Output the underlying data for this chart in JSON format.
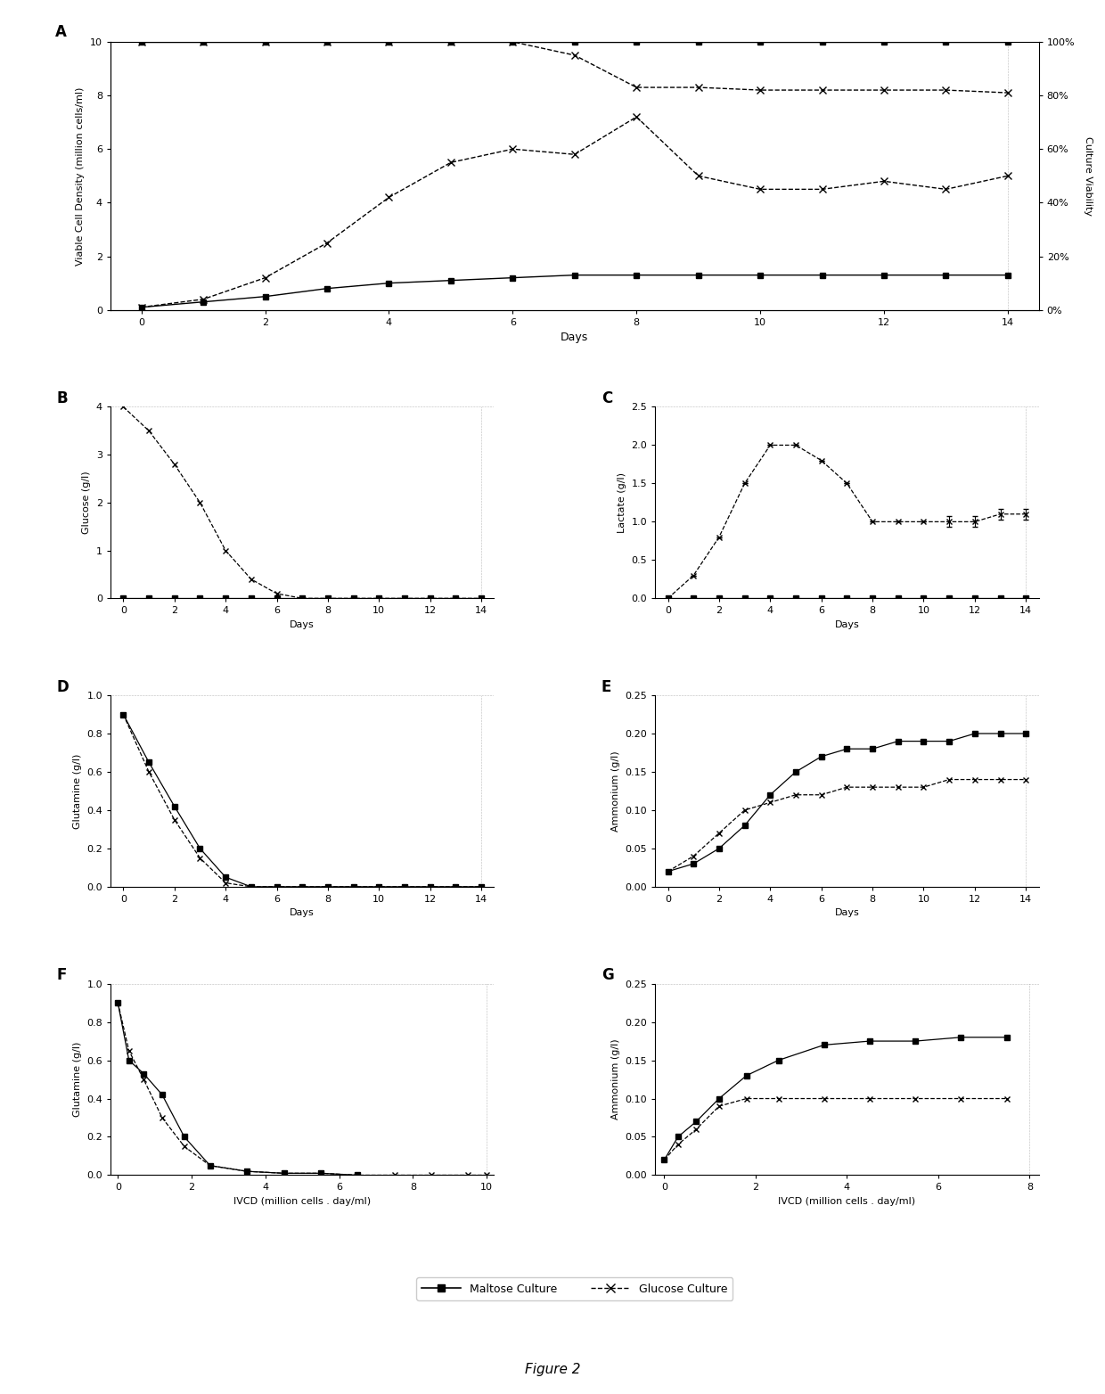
{
  "panel_A": {
    "maltose_vcd": [
      0.1,
      0.3,
      0.5,
      0.8,
      1.0,
      1.1,
      1.2,
      1.3,
      1.3,
      1.3,
      1.3,
      1.3,
      1.3,
      1.3,
      1.3
    ],
    "glucose_vcd": [
      0.1,
      0.4,
      1.2,
      2.5,
      4.2,
      5.5,
      6.0,
      5.8,
      7.2,
      5.0,
      4.5,
      4.5,
      4.8,
      4.5,
      5.0
    ],
    "maltose_viability": [
      10.0,
      10.0,
      10.0,
      10.0,
      10.0,
      10.0,
      10.0,
      10.0,
      10.0,
      10.0,
      10.0,
      10.0,
      10.0,
      10.0,
      10.0
    ],
    "glucose_viability": [
      10.0,
      10.0,
      10.0,
      10.0,
      10.0,
      10.0,
      10.0,
      9.5,
      8.3,
      8.3,
      8.2,
      8.2,
      8.2,
      8.2,
      8.1
    ],
    "days": [
      0,
      1,
      2,
      3,
      4,
      5,
      6,
      7,
      8,
      9,
      10,
      11,
      12,
      13,
      14
    ],
    "ylabel_left": "Viable Cell Density (million cells/ml)",
    "ylabel_right": "Culture Viability",
    "xlabel": "Days",
    "yticks_left": [
      0.0,
      2.0,
      4.0,
      6.0,
      8.0,
      10.0
    ],
    "yticks_right_labels": [
      "0%",
      "20%",
      "40%",
      "60%",
      "80%",
      "100%"
    ],
    "xticks": [
      0,
      2,
      4,
      6,
      8,
      10,
      12,
      14
    ]
  },
  "panel_B": {
    "maltose_x": [
      0,
      1,
      2,
      3,
      4,
      5,
      6,
      7,
      8,
      9,
      10,
      11,
      12,
      13,
      14
    ],
    "maltose_y": [
      0.0,
      0.0,
      0.0,
      0.0,
      0.0,
      0.0,
      0.0,
      0.0,
      0.0,
      0.0,
      0.0,
      0.0,
      0.0,
      0.0,
      0.0
    ],
    "glucose_x": [
      0,
      1,
      2,
      3,
      4,
      5,
      6,
      7,
      8,
      9,
      10,
      11,
      12,
      13,
      14
    ],
    "glucose_y": [
      4.0,
      3.5,
      2.8,
      2.0,
      1.0,
      0.4,
      0.1,
      0.0,
      0.0,
      0.0,
      0.0,
      0.0,
      0.0,
      0.0,
      0.0
    ],
    "ylabel": "Glucose (g/l)",
    "xlabel": "Days",
    "ylim": [
      0.0,
      4.0
    ],
    "yticks": [
      0.0,
      1.0,
      2.0,
      3.0,
      4.0
    ],
    "xticks": [
      0,
      2,
      4,
      6,
      8,
      10,
      12,
      14
    ]
  },
  "panel_C": {
    "maltose_x": [
      0,
      1,
      2,
      3,
      4,
      5,
      6,
      7,
      8,
      9,
      10,
      11,
      12,
      13,
      14
    ],
    "maltose_y": [
      0.0,
      0.0,
      0.0,
      0.0,
      0.0,
      0.0,
      0.0,
      0.0,
      0.0,
      0.0,
      0.0,
      0.0,
      0.0,
      0.0,
      0.0
    ],
    "glucose_x": [
      0,
      1,
      2,
      3,
      4,
      5,
      6,
      7,
      8,
      9,
      10,
      11,
      12,
      13,
      14
    ],
    "glucose_y": [
      0.0,
      0.3,
      0.8,
      1.5,
      2.0,
      2.0,
      1.8,
      1.5,
      1.0,
      1.0,
      1.0,
      1.0,
      1.0,
      1.1,
      1.1
    ],
    "glucose_yerr": [
      0,
      0,
      0,
      0,
      0,
      0,
      0,
      0,
      0,
      0,
      0,
      0.07,
      0.07,
      0.07,
      0.07
    ],
    "ylabel": "Lactate (g/l)",
    "xlabel": "Days",
    "ylim": [
      0.0,
      2.5
    ],
    "yticks": [
      0.0,
      0.5,
      1.0,
      1.5,
      2.0,
      2.5
    ],
    "xticks": [
      0,
      2,
      4,
      6,
      8,
      10,
      12,
      14
    ]
  },
  "panel_D": {
    "maltose_x": [
      0,
      1,
      2,
      3,
      4,
      5,
      6,
      7,
      8,
      9,
      10,
      11,
      12,
      13,
      14
    ],
    "maltose_y": [
      0.9,
      0.65,
      0.42,
      0.2,
      0.05,
      0.0,
      0.0,
      0.0,
      0.0,
      0.0,
      0.0,
      0.0,
      0.0,
      0.0,
      0.0
    ],
    "glucose_x": [
      0,
      1,
      2,
      3,
      4,
      5,
      6,
      7,
      8,
      9,
      10,
      11,
      12,
      13,
      14
    ],
    "glucose_y": [
      0.9,
      0.6,
      0.35,
      0.15,
      0.02,
      0.0,
      0.0,
      0.0,
      0.0,
      0.0,
      0.0,
      0.0,
      0.0,
      0.0,
      0.0
    ],
    "ylabel": "Glutamine (g/l)",
    "xlabel": "Days",
    "ylim": [
      0.0,
      1.0
    ],
    "yticks": [
      0.0,
      0.2,
      0.4,
      0.6,
      0.8,
      1.0
    ],
    "xticks": [
      0,
      2,
      4,
      6,
      8,
      10,
      12,
      14
    ]
  },
  "panel_E": {
    "maltose_x": [
      0,
      1,
      2,
      3,
      4,
      5,
      6,
      7,
      8,
      9,
      10,
      11,
      12,
      13,
      14
    ],
    "maltose_y": [
      0.02,
      0.03,
      0.05,
      0.08,
      0.12,
      0.15,
      0.17,
      0.18,
      0.18,
      0.19,
      0.19,
      0.19,
      0.2,
      0.2,
      0.2
    ],
    "glucose_x": [
      0,
      1,
      2,
      3,
      4,
      5,
      6,
      7,
      8,
      9,
      10,
      11,
      12,
      13,
      14
    ],
    "glucose_y": [
      0.02,
      0.04,
      0.07,
      0.1,
      0.11,
      0.12,
      0.12,
      0.13,
      0.13,
      0.13,
      0.13,
      0.14,
      0.14,
      0.14,
      0.14
    ],
    "ylabel": "Ammonium (g/l)",
    "xlabel": "Days",
    "ylim": [
      0.0,
      0.25
    ],
    "yticks": [
      0.0,
      0.05,
      0.1,
      0.15,
      0.2,
      0.25
    ],
    "xticks": [
      0,
      2,
      4,
      6,
      8,
      10,
      12,
      14
    ]
  },
  "panel_F": {
    "maltose_x": [
      0.0,
      0.3,
      0.7,
      1.2,
      1.8,
      2.5,
      3.5,
      4.5,
      5.5,
      6.5
    ],
    "maltose_y": [
      0.9,
      0.6,
      0.53,
      0.42,
      0.2,
      0.05,
      0.02,
      0.01,
      0.01,
      0.0
    ],
    "glucose_x": [
      0.0,
      0.3,
      0.7,
      1.2,
      1.8,
      2.5,
      3.5,
      4.5,
      5.5,
      6.5,
      7.5,
      8.5,
      9.5,
      10.0
    ],
    "glucose_y": [
      0.9,
      0.65,
      0.5,
      0.3,
      0.15,
      0.05,
      0.02,
      0.01,
      0.01,
      0.0,
      0.0,
      0.0,
      0.0,
      0.0
    ],
    "ylabel": "Glutamine (g/l)",
    "xlabel": "IVCD (million cells . day/ml)",
    "ylim": [
      0.0,
      1.0
    ],
    "yticks": [
      0.0,
      0.2,
      0.4,
      0.6,
      0.8,
      1.0
    ],
    "xlim": [
      0.0,
      10.0
    ],
    "xticks": [
      0.0,
      2.0,
      4.0,
      6.0,
      8.0,
      10.0
    ]
  },
  "panel_G": {
    "maltose_x": [
      0.0,
      0.3,
      0.7,
      1.2,
      1.8,
      2.5,
      3.5,
      4.5,
      5.5,
      6.5,
      7.5
    ],
    "maltose_y": [
      0.02,
      0.05,
      0.07,
      0.1,
      0.13,
      0.15,
      0.17,
      0.175,
      0.175,
      0.18,
      0.18
    ],
    "glucose_x": [
      0.0,
      0.3,
      0.7,
      1.2,
      1.8,
      2.5,
      3.5,
      4.5,
      5.5,
      6.5,
      7.5
    ],
    "glucose_y": [
      0.02,
      0.04,
      0.06,
      0.09,
      0.1,
      0.1,
      0.1,
      0.1,
      0.1,
      0.1,
      0.1
    ],
    "ylabel": "Ammonium (g/l)",
    "xlabel": "IVCD (million cells . day/ml)",
    "ylim": [
      0.0,
      0.25
    ],
    "yticks": [
      0.0,
      0.05,
      0.1,
      0.15,
      0.2,
      0.25
    ],
    "xlim": [
      0.0,
      8.0
    ],
    "xticks": [
      0.0,
      2.0,
      4.0,
      6.0,
      8.0
    ]
  },
  "legend": {
    "maltose_label": "Maltose Culture",
    "glucose_label": "Glucose Culture"
  },
  "figure_title": "Figure 2",
  "maltose_color": "#000000",
  "glucose_color": "#000000",
  "bg_color": "#ffffff"
}
